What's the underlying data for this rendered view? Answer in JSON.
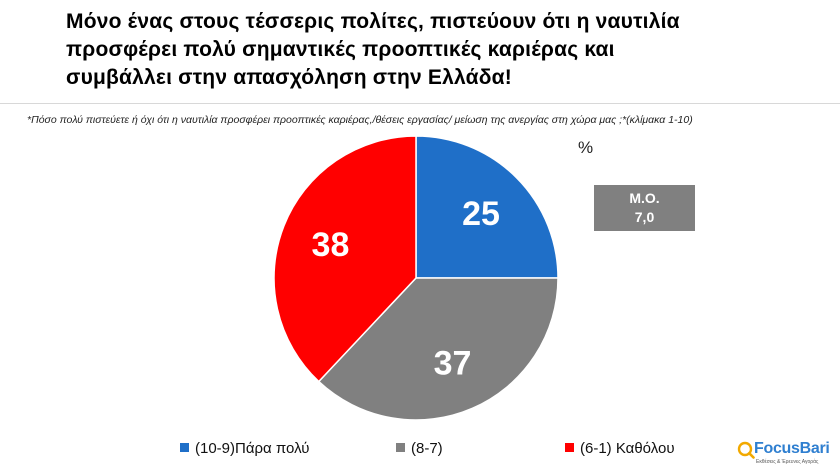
{
  "title": {
    "lines": [
      "Μόνο ένας στους τέσσερις πολίτες, πιστεύουν ότι η ναυτιλία",
      "προσφέρει πολύ σημαντικές προοπτικές καριέρας και",
      "συμβάλλει στην απασχόληση στην Ελλάδα!"
    ]
  },
  "question": "*Πόσο πολύ πιστεύετε ή όχι ότι η ναυτιλία προσφέρει προοπτικές καριέρας,/θέσεις εργασίας/ μείωση της ανεργίας στη χώρα μας ;*(κλίμακα 1-10)",
  "percent_sign": "%",
  "mean_box": {
    "label": "Μ.Ο.",
    "value": "7,0"
  },
  "logo": {
    "name_focus": "Focus",
    "name_bari": "Bari",
    "tagline": "Εκθέσεις & Έρευνες Αγοράς"
  },
  "colors": {
    "blue": "#1F6FC8",
    "gray": "#808080",
    "red": "#FF0000"
  },
  "chart_data": {
    "type": "pie",
    "title": "",
    "slices": [
      {
        "label": "(10-9)Πάρα πολύ",
        "value": 25,
        "color": "#1F6FC8"
      },
      {
        "label": "(8-7)",
        "value": 37,
        "color": "#808080"
      },
      {
        "label": "(6-1) Καθόλου",
        "value": 38,
        "color": "#FF0000"
      }
    ],
    "legend": "bottom",
    "start": "top, clockwise"
  }
}
